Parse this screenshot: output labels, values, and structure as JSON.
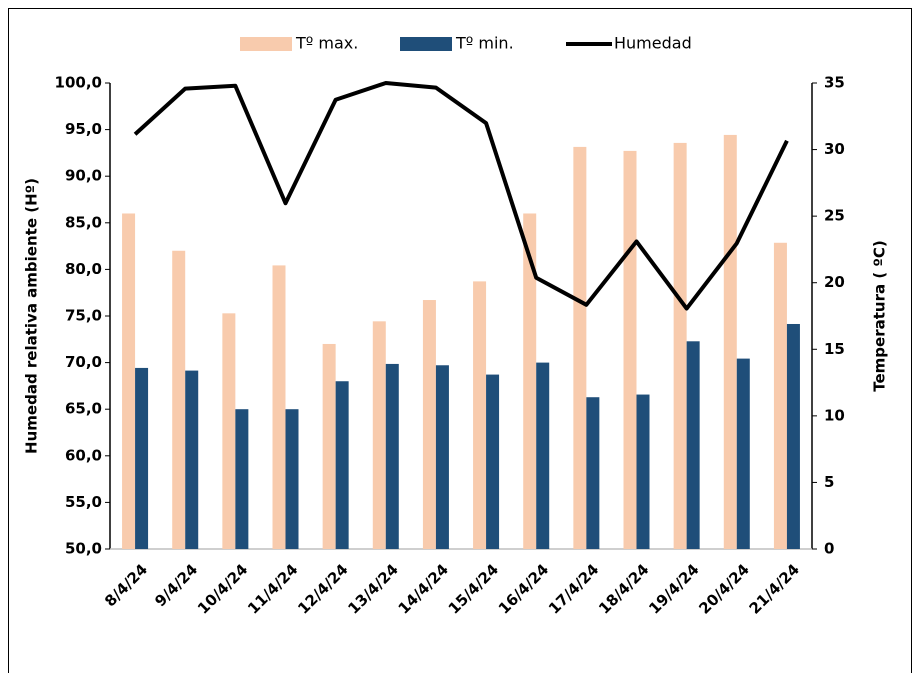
{
  "chart_data": {
    "type": "bar-line",
    "categories": [
      "8/4/24",
      "9/4/24",
      "10/4/24",
      "11/4/24",
      "12/4/24",
      "13/4/24",
      "14/4/24",
      "15/4/24",
      "16/4/24",
      "17/4/24",
      "18/4/24",
      "19/4/24",
      "20/4/24",
      "21/4/24"
    ],
    "series": [
      {
        "name": "Tº max.",
        "type": "bar",
        "axis": "y2",
        "color": "#f8cbad",
        "values": [
          25.2,
          22.4,
          17.7,
          21.3,
          15.4,
          17.1,
          18.7,
          20.1,
          25.2,
          30.2,
          29.9,
          30.5,
          31.1,
          23.0
        ]
      },
      {
        "name": "Tº min.",
        "type": "bar",
        "axis": "y2",
        "color": "#1f4e79",
        "values": [
          13.6,
          13.4,
          10.5,
          10.5,
          12.6,
          13.9,
          13.8,
          13.1,
          14.0,
          11.4,
          11.6,
          15.6,
          14.3,
          16.9
        ]
      },
      {
        "name": "Humedad",
        "type": "line",
        "axis": "y",
        "color": "#000000",
        "values": [
          94.5,
          99.4,
          99.7,
          87.1,
          98.2,
          100.0,
          99.5,
          95.7,
          79.1,
          76.2,
          83.0,
          75.8,
          82.8,
          93.8
        ]
      }
    ],
    "ylabel": "Humedad relativa ambiente  (Hº)",
    "y2label": "Temperatura ( ºC)",
    "ylim": [
      50,
      100
    ],
    "yticks": [
      {
        "value": 50,
        "label": "50,0"
      },
      {
        "value": 55,
        "label": "55,0"
      },
      {
        "value": 60,
        "label": "60,0"
      },
      {
        "value": 65,
        "label": "65,0"
      },
      {
        "value": 70,
        "label": "70,0"
      },
      {
        "value": 75,
        "label": "75,0"
      },
      {
        "value": 80,
        "label": "80,0"
      },
      {
        "value": 85,
        "label": "85,0"
      },
      {
        "value": 90,
        "label": "90,0"
      },
      {
        "value": 95,
        "label": "95,0"
      },
      {
        "value": 100,
        "label": "100,0"
      }
    ],
    "y2lim": [
      0,
      35
    ],
    "y2ticks": [
      0,
      5,
      10,
      15,
      20,
      25,
      30,
      35
    ],
    "legend": "top"
  }
}
